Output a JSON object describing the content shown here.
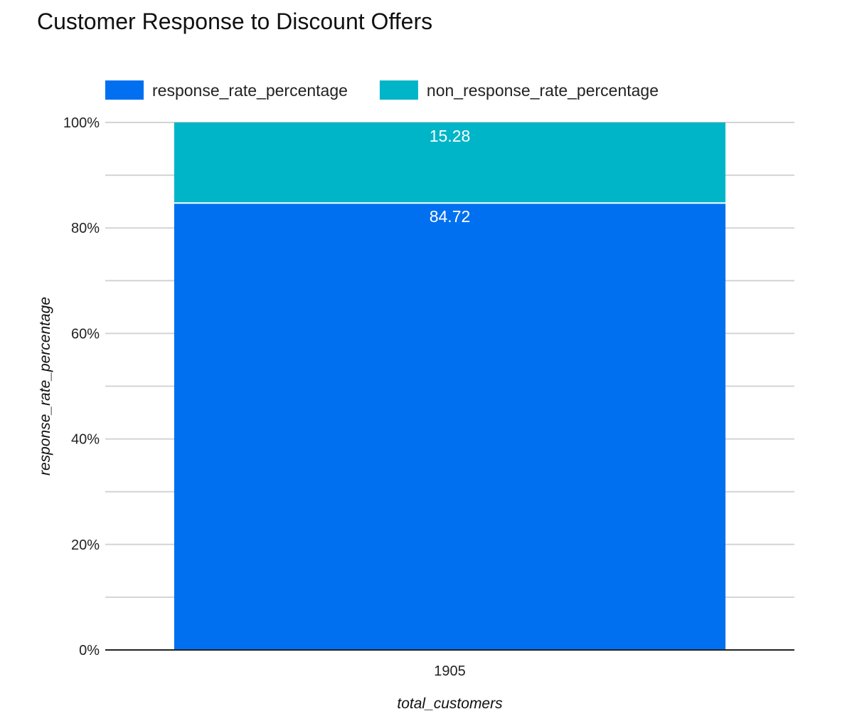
{
  "chart_data": {
    "type": "bar",
    "stacked": true,
    "normalized_percent": true,
    "title": "Customer Response to Discount Offers",
    "xlabel": "total_customers",
    "ylabel": "response_rate_percentage",
    "categories": [
      "1905"
    ],
    "series": [
      {
        "name": "response_rate_percentage",
        "values": [
          84.72
        ],
        "labels": [
          "84.72"
        ],
        "color": "#0070f0"
      },
      {
        "name": "non_response_rate_percentage",
        "values": [
          15.28
        ],
        "labels": [
          "15.28"
        ],
        "color": "#00b5c8"
      }
    ],
    "ylim": [
      0,
      100
    ],
    "yticks": [
      {
        "value": 0,
        "label": "0%"
      },
      {
        "value": 20,
        "label": "20%"
      },
      {
        "value": 40,
        "label": "40%"
      },
      {
        "value": 60,
        "label": "60%"
      },
      {
        "value": 80,
        "label": "80%"
      },
      {
        "value": 100,
        "label": "100%"
      }
    ],
    "minor_gridlines": [
      10,
      30,
      50,
      70,
      90
    ],
    "grid": true,
    "legend_position": "top-left"
  }
}
